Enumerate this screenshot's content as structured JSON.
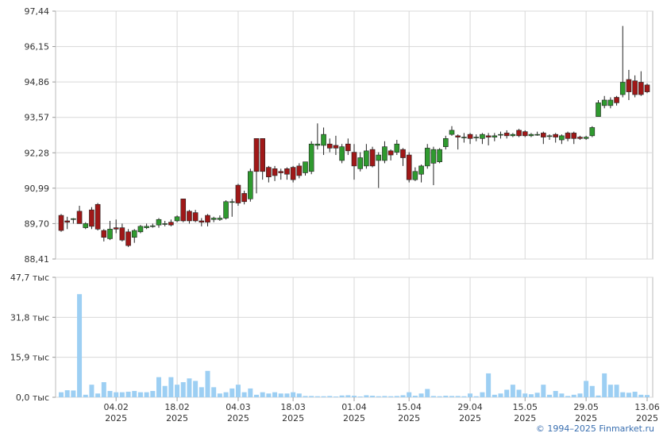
{
  "chart_data": [
    {
      "type": "candlestick",
      "up_color": "#2f9a2f",
      "down_color": "#a01818",
      "outline": "#222",
      "ylim": [
        88.41,
        97.44
      ],
      "yticks": [
        {
          "value": 88.41,
          "label": "88,41"
        },
        {
          "value": 89.7,
          "label": "89,70"
        },
        {
          "value": 90.99,
          "label": "90,99"
        },
        {
          "value": 92.28,
          "label": "92,28"
        },
        {
          "value": 93.57,
          "label": "93,57"
        },
        {
          "value": 94.86,
          "label": "94,86"
        },
        {
          "value": 96.15,
          "label": "96,15"
        },
        {
          "value": 97.44,
          "label": "97,44"
        }
      ],
      "grid": true,
      "open": [
        90.0,
        89.8,
        89.85,
        90.15,
        89.55,
        90.2,
        90.4,
        89.45,
        89.15,
        89.55,
        89.55,
        89.4,
        89.2,
        89.4,
        89.55,
        89.6,
        89.65,
        89.7,
        89.75,
        89.8,
        90.6,
        90.15,
        90.1,
        89.8,
        90.0,
        89.85,
        89.85,
        89.9,
        90.5,
        91.1,
        90.8,
        90.6,
        92.8,
        92.8,
        91.75,
        91.7,
        91.6,
        91.7,
        91.75,
        91.8,
        91.55,
        91.6,
        92.55,
        92.55,
        92.6,
        92.55,
        92.0,
        92.6,
        92.3,
        91.7,
        91.8,
        92.4,
        92.0,
        92.0,
        92.35,
        92.3,
        92.4,
        92.2,
        91.3,
        91.5,
        91.8,
        91.9,
        91.95,
        92.5,
        92.95,
        92.9,
        92.85,
        92.95,
        92.85,
        92.8,
        92.9,
        92.85,
        92.95,
        93.0,
        92.9,
        93.1,
        93.05,
        92.9,
        92.95,
        93.0,
        92.9,
        92.95,
        92.75,
        93.0,
        93.0,
        92.85,
        92.8,
        92.9,
        93.6,
        94.0,
        94.0,
        94.3,
        94.4,
        94.95,
        94.9,
        94.85,
        94.75
      ],
      "high": [
        90.05,
        89.95,
        89.9,
        90.35,
        89.75,
        90.3,
        90.45,
        89.5,
        89.8,
        89.85,
        89.7,
        89.5,
        89.5,
        89.65,
        89.7,
        89.7,
        89.9,
        89.8,
        89.85,
        90.0,
        90.6,
        90.2,
        90.2,
        89.9,
        90.05,
        89.95,
        90.0,
        90.55,
        90.6,
        91.15,
        90.9,
        91.7,
        92.8,
        92.8,
        91.8,
        91.8,
        91.7,
        91.75,
        91.8,
        91.9,
        91.95,
        92.7,
        93.35,
        93.2,
        92.8,
        92.9,
        92.6,
        92.8,
        92.6,
        92.3,
        92.6,
        92.5,
        92.3,
        92.7,
        92.4,
        92.75,
        92.45,
        92.3,
        91.75,
        91.85,
        92.6,
        92.5,
        92.45,
        92.9,
        93.25,
        92.95,
        93.0,
        93.0,
        92.95,
        93.0,
        93.0,
        93.0,
        93.05,
        93.1,
        93.0,
        93.15,
        93.1,
        93.0,
        93.05,
        93.05,
        92.95,
        93.0,
        92.95,
        93.05,
        93.05,
        92.9,
        92.9,
        93.25,
        94.2,
        94.35,
        94.3,
        94.35,
        96.9,
        95.3,
        95.1,
        95.25,
        94.8
      ],
      "low": [
        89.4,
        89.5,
        89.7,
        89.7,
        89.5,
        89.5,
        89.45,
        89.05,
        89.1,
        89.35,
        89.05,
        88.85,
        89.0,
        89.35,
        89.5,
        89.55,
        89.55,
        89.6,
        89.6,
        89.75,
        89.75,
        89.7,
        89.75,
        89.6,
        89.6,
        89.75,
        89.8,
        89.85,
        89.95,
        90.35,
        90.4,
        90.5,
        90.8,
        91.3,
        91.2,
        91.25,
        91.3,
        91.3,
        91.2,
        91.35,
        91.45,
        91.5,
        92.4,
        92.2,
        92.3,
        92.2,
        91.9,
        92.2,
        91.3,
        91.6,
        91.7,
        91.75,
        91.0,
        91.9,
        92.0,
        92.2,
        91.8,
        91.2,
        91.25,
        91.2,
        91.7,
        91.1,
        91.9,
        92.4,
        92.9,
        92.4,
        92.65,
        92.6,
        92.7,
        92.6,
        92.55,
        92.7,
        92.8,
        92.8,
        92.85,
        92.85,
        92.85,
        92.85,
        92.9,
        92.6,
        92.75,
        92.65,
        92.6,
        92.7,
        92.6,
        92.75,
        92.75,
        92.85,
        93.6,
        93.9,
        93.9,
        94.0,
        94.3,
        94.2,
        94.3,
        94.35,
        94.45
      ],
      "close": [
        89.45,
        89.75,
        89.88,
        89.7,
        89.7,
        89.6,
        89.5,
        89.2,
        89.5,
        89.5,
        89.1,
        88.9,
        89.45,
        89.6,
        89.6,
        89.62,
        89.85,
        89.7,
        89.65,
        89.95,
        89.8,
        89.8,
        89.8,
        89.75,
        89.75,
        89.9,
        89.9,
        90.5,
        90.5,
        90.45,
        90.5,
        91.6,
        91.6,
        91.6,
        91.4,
        91.45,
        91.55,
        91.5,
        91.3,
        91.45,
        91.95,
        92.6,
        92.6,
        92.95,
        92.45,
        92.45,
        92.5,
        92.35,
        91.8,
        92.1,
        92.35,
        91.8,
        92.2,
        92.5,
        92.2,
        92.6,
        92.1,
        91.3,
        91.6,
        91.8,
        92.45,
        92.4,
        92.4,
        92.8,
        93.1,
        92.85,
        92.85,
        92.8,
        92.85,
        92.95,
        92.85,
        92.9,
        92.95,
        92.9,
        92.95,
        92.9,
        92.9,
        92.95,
        92.95,
        92.85,
        92.9,
        92.85,
        92.9,
        92.8,
        92.8,
        92.8,
        92.85,
        93.2,
        94.1,
        94.2,
        94.2,
        94.1,
        94.85,
        94.5,
        94.4,
        94.4,
        94.5
      ]
    },
    {
      "type": "bar",
      "color": "#9dcff3",
      "ylim": [
        0,
        47.7
      ],
      "yticks": [
        {
          "value": 0,
          "label": "0,0 тыс"
        },
        {
          "value": 15.9,
          "label": "15,9 тыс"
        },
        {
          "value": 31.8,
          "label": "31,8 тыс"
        },
        {
          "value": 47.7,
          "label": "47,7 тыс"
        }
      ],
      "grid": true,
      "categories": [
        null,
        null,
        null,
        null,
        null,
        null,
        null,
        null,
        null,
        "04.02\n2025",
        null,
        null,
        null,
        null,
        null,
        null,
        null,
        null,
        null,
        "18.02\n2025",
        null,
        null,
        null,
        null,
        null,
        null,
        null,
        null,
        null,
        "04.03\n2025",
        null,
        null,
        null,
        null,
        null,
        null,
        null,
        null,
        "18.03\n2025",
        null,
        null,
        null,
        null,
        null,
        null,
        null,
        null,
        null,
        "01.04\n2025",
        null,
        null,
        null,
        null,
        null,
        null,
        null,
        null,
        "15.04\n2025",
        null,
        null,
        null,
        null,
        null,
        null,
        null,
        null,
        null,
        "29.04\n2025",
        null,
        null,
        null,
        null,
        null,
        null,
        null,
        null,
        "15.05\n2025",
        null,
        null,
        null,
        null,
        null,
        null,
        null,
        null,
        null,
        "29.05\n2025",
        null,
        null,
        null,
        null,
        null,
        null,
        null,
        null,
        null,
        "13.06\n2025"
      ],
      "values": [
        2,
        2.8,
        2.7,
        41,
        1,
        5,
        1.5,
        6,
        2.5,
        2,
        2,
        2.2,
        2.5,
        2,
        2,
        2.5,
        8,
        4.5,
        8,
        5,
        6,
        7.5,
        6.5,
        4,
        10.5,
        4,
        1.5,
        2,
        3.5,
        5,
        2,
        3.5,
        1,
        2,
        1.5,
        2,
        1.5,
        1.5,
        2,
        1.5,
        0.5,
        0.5,
        0.4,
        0.4,
        0.5,
        0.3,
        0.7,
        0.8,
        0.6,
        0.3,
        0.8,
        0.6,
        0.4,
        0.5,
        0.4,
        0.5,
        0.8,
        2,
        0.6,
        1.5,
        3.3,
        0.5,
        0.4,
        0.6,
        0.5,
        0.5,
        0.4,
        1.5,
        0.4,
        2,
        9.5,
        1,
        1.5,
        3,
        5,
        3,
        1.5,
        1.2,
        1.8,
        5,
        1,
        2.5,
        1.5,
        0.5,
        1,
        1.5,
        6.5,
        4.5,
        0.7,
        9.5,
        5,
        5,
        2,
        1.8,
        2.2,
        1,
        0.9
      ]
    }
  ],
  "credit": "© 1994–2025 Finmarket.ru"
}
